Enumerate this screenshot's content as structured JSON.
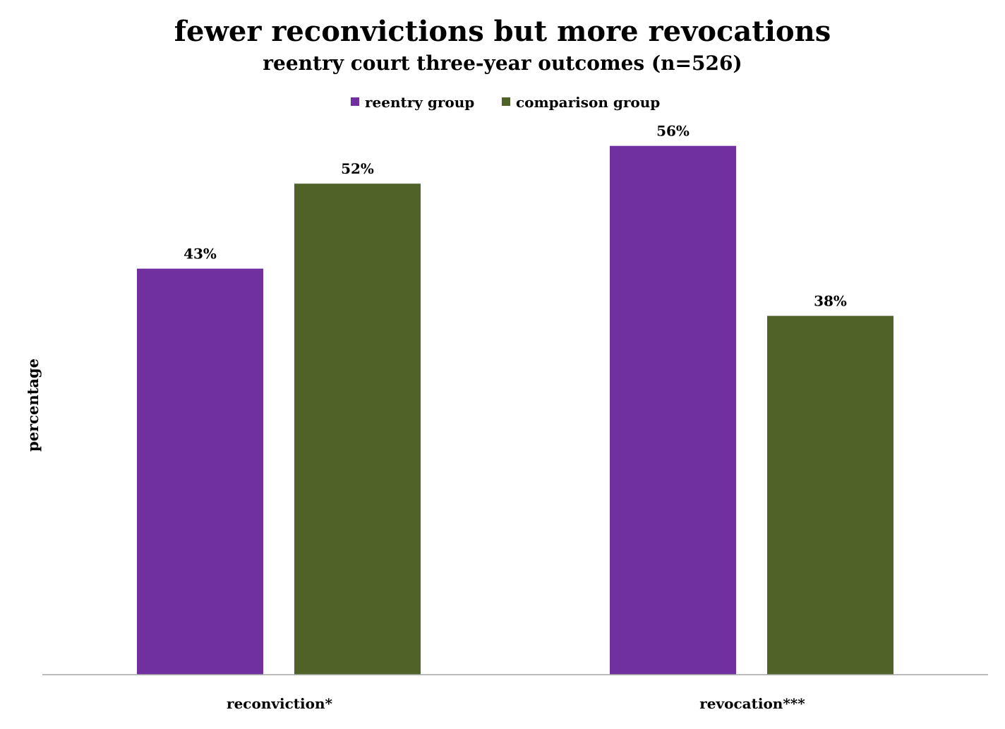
{
  "chart_data": {
    "type": "bar",
    "title": "fewer reconvictions but more revocations",
    "subtitle": "reentry court three-year outcomes (n=526)",
    "xlabel": "",
    "ylabel": "percentage",
    "categories": [
      "reconviction*",
      "revocation***"
    ],
    "series": [
      {
        "name": "reentry group",
        "values": [
          43,
          56
        ],
        "labels": [
          "43%",
          "56%"
        ],
        "color": "#7030a0"
      },
      {
        "name": "comparison group",
        "values": [
          52,
          38
        ],
        "labels": [
          "52%",
          "38%"
        ],
        "color": "#4f6228"
      }
    ],
    "ylim": [
      0,
      60
    ],
    "grid": false,
    "legend": "top-center",
    "axis_color": "#a6a6a6"
  }
}
